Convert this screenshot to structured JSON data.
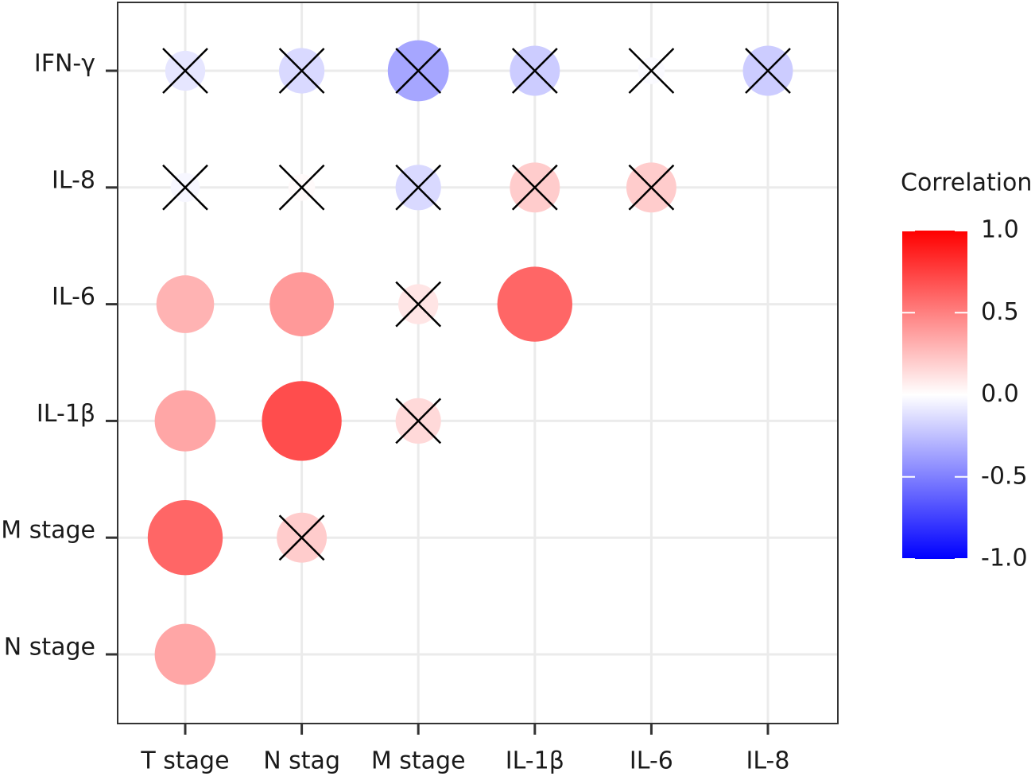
{
  "chart_data": {
    "type": "correlogram",
    "x_categories": [
      "T stage",
      "N stag",
      "M stage",
      "IL-1β",
      "IL-6",
      "IL-8"
    ],
    "y_categories": [
      "IFN-γ",
      "IL-8",
      "IL-6",
      "IL-1β",
      "M stage",
      "N stage"
    ],
    "values": [
      [
        -0.1,
        -0.15,
        -0.35,
        -0.2,
        -0.02,
        -0.2
      ],
      [
        -0.03,
        0.02,
        -0.15,
        0.2,
        0.2,
        null
      ],
      [
        0.3,
        0.4,
        0.1,
        0.6,
        null,
        null
      ],
      [
        0.35,
        0.7,
        0.15,
        null,
        null,
        null
      ],
      [
        0.6,
        0.2,
        null,
        null,
        null,
        null
      ],
      [
        0.35,
        null,
        null,
        null,
        null,
        null
      ]
    ],
    "crossed": [
      [
        true,
        true,
        true,
        true,
        true,
        true
      ],
      [
        true,
        true,
        true,
        true,
        true,
        null
      ],
      [
        false,
        false,
        true,
        false,
        null,
        null
      ],
      [
        false,
        false,
        true,
        null,
        null,
        null
      ],
      [
        false,
        true,
        null,
        null,
        null,
        null
      ],
      [
        false,
        null,
        null,
        null,
        null,
        null
      ]
    ],
    "legend": {
      "title": "Correlation",
      "lim": [
        -1,
        1
      ],
      "ticks": [
        {
          "value": 1,
          "label": "1.0"
        },
        0.5,
        {
          "value": 0,
          "label": "0.0"
        },
        -0.5,
        {
          "value": -1,
          "label": "-1.0"
        }
      ],
      "low": "#0000ff",
      "mid": "#ffffff",
      "high": "#ff0000"
    },
    "grid": true
  }
}
